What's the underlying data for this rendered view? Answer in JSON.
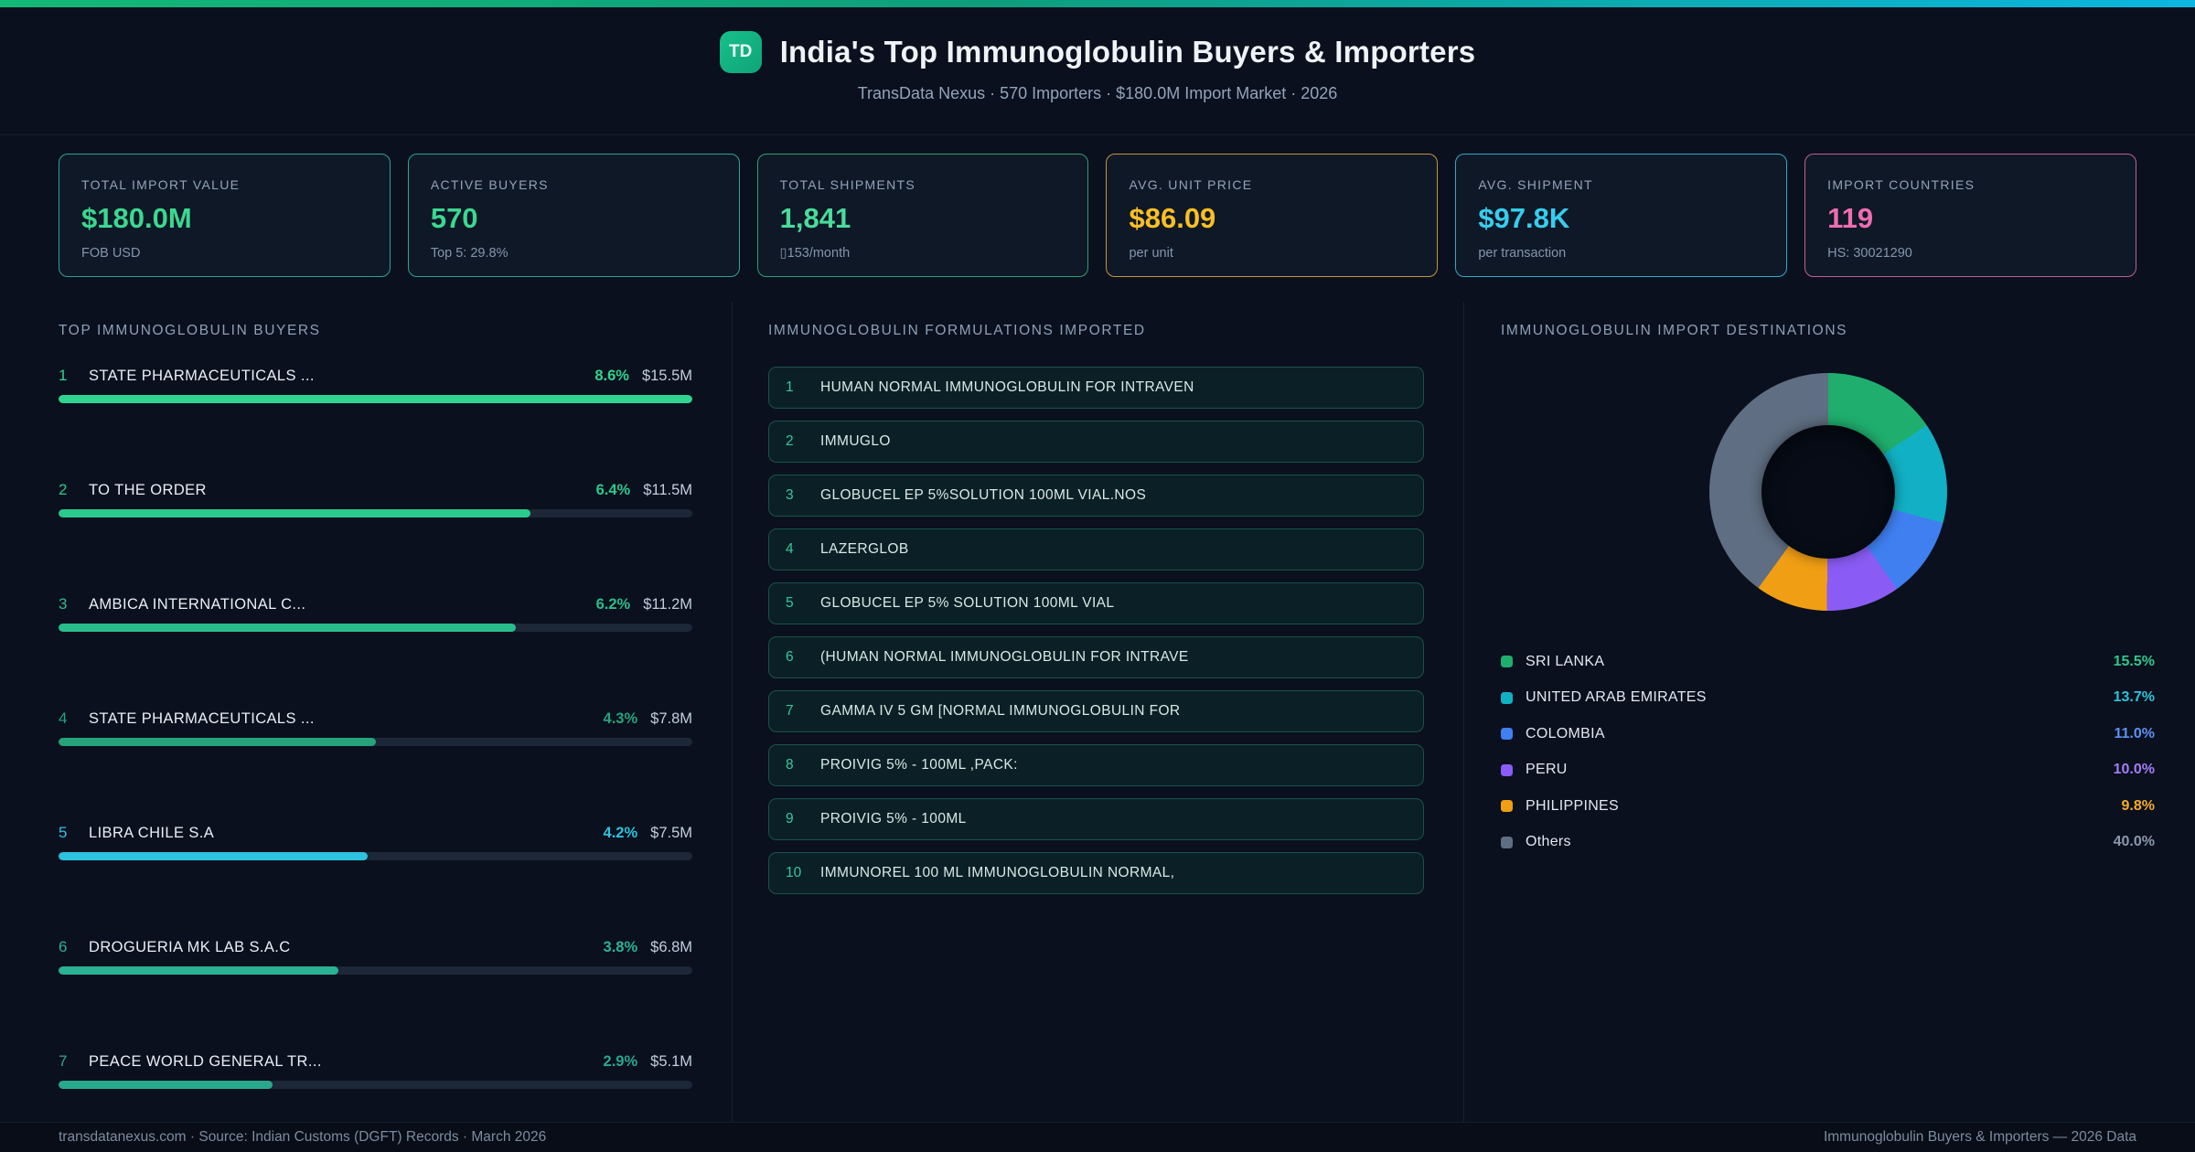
{
  "header": {
    "logo_text": "TD",
    "title": "India's Top Immunoglobulin Buyers & Importers",
    "subtitle": "TransData Nexus · 570 Importers · $180.0M Import Market · 2026"
  },
  "accent_colors": {
    "bar_left": "#14b877",
    "bar_right": "#0cb6e0"
  },
  "stats": [
    {
      "label": "TOTAL IMPORT VALUE",
      "value": "$180.0M",
      "sub": "FOB USD",
      "color": "#3bd890",
      "border": "#2aa493"
    },
    {
      "label": "ACTIVE BUYERS",
      "value": "570",
      "sub": "Top 5: 29.8%",
      "color": "#3bd890",
      "border": "#2aa493"
    },
    {
      "label": "TOTAL SHIPMENTS",
      "value": "1,841",
      "sub": "▯153/month",
      "color": "#4adb9b",
      "border": "#2f9f6f"
    },
    {
      "label": "AVG. UNIT PRICE",
      "value": "$86.09",
      "sub": "per unit",
      "color": "#fbbf24",
      "border": "#c2973b"
    },
    {
      "label": "AVG. SHIPMENT",
      "value": "$97.8K",
      "sub": "per transaction",
      "color": "#37cdee",
      "border": "#2fa9c6"
    },
    {
      "label": "IMPORT COUNTRIES",
      "value": "119",
      "sub": "HS: 30021290",
      "color": "#ef6db0",
      "border": "#c05f95"
    }
  ],
  "buyers": {
    "heading": "TOP IMMUNOGLOBULIN BUYERS",
    "items": [
      {
        "rank": "1",
        "name": "STATE PHARMACEUTICALS ...",
        "pct": "8.6%",
        "value": "$15.5M",
        "bar_pct": 100,
        "color": "#2ed490"
      },
      {
        "rank": "2",
        "name": "TO THE ORDER",
        "pct": "6.4%",
        "value": "$11.5M",
        "bar_pct": 74.4,
        "color": "#2bc98c"
      },
      {
        "rank": "3",
        "name": "AMBICA INTERNATIONAL C...",
        "pct": "6.2%",
        "value": "$11.2M",
        "bar_pct": 72.1,
        "color": "#2abd8c"
      },
      {
        "rank": "4",
        "name": "STATE PHARMACEUTICALS ...",
        "pct": "4.3%",
        "value": "$7.8M",
        "bar_pct": 50.0,
        "color": "#27a37c"
      },
      {
        "rank": "5",
        "name": "LIBRA CHILE S.A",
        "pct": "4.2%",
        "value": "$7.5M",
        "bar_pct": 48.8,
        "color": "#2cc2e0"
      },
      {
        "rank": "6",
        "name": "DROGUERIA MK LAB S.A.C",
        "pct": "3.8%",
        "value": "$6.8M",
        "bar_pct": 44.2,
        "color": "#2ab294"
      },
      {
        "rank": "7",
        "name": "PEACE WORLD GENERAL TR...",
        "pct": "2.9%",
        "value": "$5.1M",
        "bar_pct": 33.7,
        "color": "#29a88e"
      }
    ]
  },
  "formulations": {
    "heading": "IMMUNOGLOBULIN FORMULATIONS IMPORTED",
    "items": [
      {
        "num": "1",
        "text": "HUMAN NORMAL IMMUNOGLOBULIN FOR INTRAVEN"
      },
      {
        "num": "2",
        "text": "IMMUGLO"
      },
      {
        "num": "3",
        "text": "GLOBUCEL EP 5%SOLUTION 100ML VIAL.NOS"
      },
      {
        "num": "4",
        "text": "LAZERGLOB"
      },
      {
        "num": "5",
        "text": "GLOBUCEL EP 5% SOLUTION 100ML VIAL"
      },
      {
        "num": "6",
        "text": "(HUMAN NORMAL IMMUNOGLOBULIN FOR INTRAVE"
      },
      {
        "num": "7",
        "text": "GAMMA IV 5 GM [NORMAL IMMUNOGLOBULIN FOR"
      },
      {
        "num": "8",
        "text": "PROIVIG 5% - 100ML ,PACK:"
      },
      {
        "num": "9",
        "text": "PROIVIG 5% - 100ML"
      },
      {
        "num": "10",
        "text": "IMMUNOREL 100 ML IMMUNOGLOBULIN NORMAL,"
      }
    ]
  },
  "destinations": {
    "heading": "IMMUNOGLOBULIN IMPORT DESTINATIONS"
  },
  "chart_data": [
    {
      "type": "pie",
      "title": "IMMUNOGLOBULIN IMPORT DESTINATIONS",
      "donut": true,
      "start_angle_deg": 0,
      "direction": "clockwise",
      "labels": [
        "SRI LANKA",
        "UNITED ARAB EMIRATES",
        "COLOMBIA",
        "PERU",
        "PHILIPPINES",
        "Others"
      ],
      "values": [
        15.5,
        13.7,
        11.0,
        10.0,
        9.8,
        40.0
      ],
      "colors": [
        "#1fae6e",
        "#12b0c4",
        "#3f7ff0",
        "#8a5cf5",
        "#f09e14",
        "#5f6e82"
      ],
      "pct_text_colors": [
        "#2dc98c",
        "#2cc3da",
        "#5b92f5",
        "#a37df7",
        "#f5ab2b",
        "#8b99ac"
      ],
      "legend_position": "below"
    },
    {
      "type": "bar",
      "title": "TOP IMMUNOGLOBULIN BUYERS",
      "categories": [
        "STATE PHARMACEUTICALS ...",
        "TO THE ORDER",
        "AMBICA INTERNATIONAL C...",
        "STATE PHARMACEUTICALS ...",
        "LIBRA CHILE S.A",
        "DROGUERIA MK LAB S.A.C",
        "PEACE WORLD GENERAL TR..."
      ],
      "series": [
        {
          "name": "share_pct",
          "values": [
            8.6,
            6.4,
            6.2,
            4.3,
            4.2,
            3.8,
            2.9
          ]
        },
        {
          "name": "value_usd_m",
          "values": [
            15.5,
            11.5,
            11.2,
            7.8,
            7.5,
            6.8,
            5.1
          ]
        }
      ],
      "xlim": [
        0,
        8.6
      ]
    }
  ],
  "footer": {
    "left": "transdatanexus.com · Source: Indian Customs (DGFT) Records · March 2026",
    "right": "Immunoglobulin Buyers & Importers — 2026 Data"
  }
}
